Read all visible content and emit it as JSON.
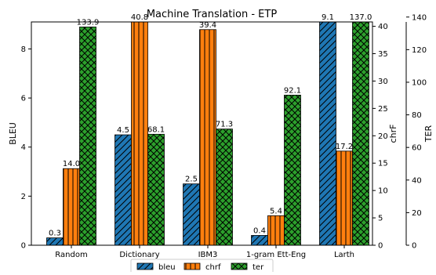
{
  "chart_data": {
    "type": "bar",
    "title": "Machine Translation - ETP",
    "categories": [
      "Random",
      "Dictionary",
      "IBM3",
      "1-gram Ett-Eng",
      "Larth"
    ],
    "series": [
      {
        "name": "bleu",
        "axis": "BLEU",
        "values": [
          0.3,
          4.5,
          2.5,
          0.4,
          9.1
        ],
        "labels": [
          "0.3",
          "4.5",
          "2.5",
          "0.4",
          "9.1"
        ],
        "color": "#1f77b4",
        "hatch": "diagonal"
      },
      {
        "name": "chrf",
        "axis": "chrF",
        "values": [
          14.0,
          40.8,
          39.4,
          5.4,
          17.2
        ],
        "labels": [
          "14.0",
          "40.8",
          "39.4",
          "5.4",
          "17.2"
        ],
        "color": "#ff7f0e",
        "hatch": "vertical"
      },
      {
        "name": "ter",
        "axis": "TER",
        "values": [
          133.9,
          68.1,
          71.3,
          92.1,
          137.0
        ],
        "labels": [
          "133.9",
          "68.1",
          "71.3",
          "92.1",
          "137.0"
        ],
        "color": "#2ca02c",
        "hatch": "crosshatch"
      }
    ],
    "axes": {
      "bleu": {
        "label": "BLEU",
        "range": [
          0,
          9.1
        ],
        "ticks": [
          0,
          2,
          4,
          6,
          8
        ],
        "position": "left"
      },
      "chrf": {
        "label": "chrF",
        "range": [
          0,
          40.8
        ],
        "ticks": [
          0,
          5,
          10,
          15,
          20,
          25,
          30,
          35,
          40
        ],
        "position": "right"
      },
      "ter": {
        "label": "TER",
        "range": [
          0,
          137.0
        ],
        "ticks": [
          0,
          20,
          40,
          60,
          80,
          100,
          120,
          140
        ],
        "position": "right-outer"
      }
    },
    "legend": {
      "placement": "bottom-center",
      "entries": [
        "bleu",
        "chrf",
        "ter"
      ]
    },
    "grid": false
  }
}
